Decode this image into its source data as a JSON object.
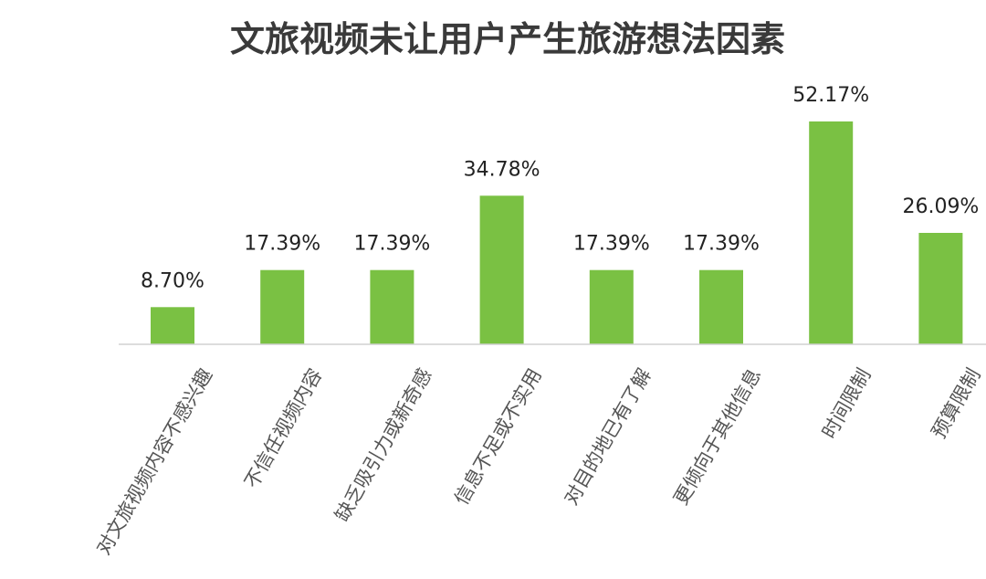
{
  "chart_data": {
    "type": "bar",
    "title": "文旅视频未让用户产生旅游想法因素",
    "categories": [
      "对文旅视频内容不感兴趣",
      "不信任视频内容",
      "缺乏吸引力或新奇感",
      "信息不足或不实用",
      "对目的地已有了解",
      "更倾向于其他信息",
      "时间限制",
      "预算限制"
    ],
    "values": [
      8.7,
      17.39,
      17.39,
      34.78,
      17.39,
      17.39,
      52.17,
      26.09
    ],
    "value_labels": [
      "8.70%",
      "17.39%",
      "17.39%",
      "34.78%",
      "17.39%",
      "17.39%",
      "52.17%",
      "26.09%"
    ],
    "ylim": [
      0,
      52.17
    ],
    "grid": false,
    "legend": "none",
    "bar_color": "#7ac143",
    "axis_color": "#d0d0d0"
  }
}
